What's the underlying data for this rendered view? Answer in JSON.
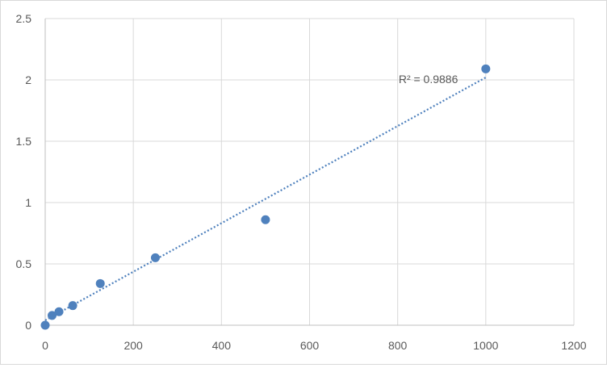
{
  "chart_data": {
    "type": "scatter",
    "title": "",
    "xlabel": "",
    "ylabel": "",
    "xlim": [
      0,
      1200
    ],
    "ylim": [
      0,
      2.5
    ],
    "xticks": [
      0,
      200,
      400,
      600,
      800,
      1000,
      1200
    ],
    "yticks": [
      0,
      0.5,
      1,
      1.5,
      2,
      2.5
    ],
    "xtick_labels": [
      "0",
      "200",
      "400",
      "600",
      "800",
      "1000",
      "1200"
    ],
    "ytick_labels": [
      "0",
      "0.5",
      "1",
      "1.5",
      "2",
      "2.5"
    ],
    "grid": true,
    "legend": "none",
    "series": [
      {
        "x": [
          0,
          15.6,
          31.25,
          62.5,
          125,
          250,
          500,
          1000
        ],
        "y": [
          0.0,
          0.08,
          0.11,
          0.16,
          0.34,
          0.55,
          0.86,
          2.09
        ],
        "color": "#4f81bd"
      }
    ],
    "trendline": {
      "type": "linear",
      "x_range": [
        0,
        1000
      ],
      "y_range": [
        0.04,
        2.02
      ],
      "color": "#4f81bd",
      "style": "dotted",
      "label": "R² = 0.9886"
    }
  }
}
